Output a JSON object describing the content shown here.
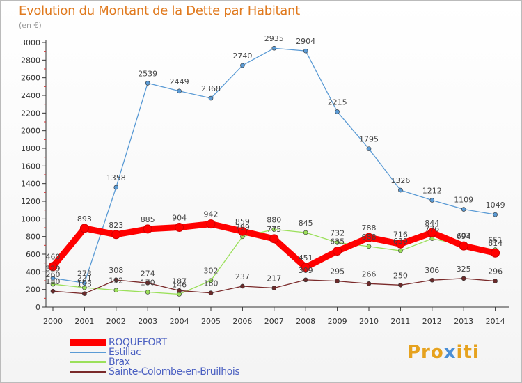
{
  "title": "Evolution du Montant de la Dette par Habitant",
  "unit": "(en €)",
  "logo": {
    "prefix": "Pro",
    "x": "x",
    "suffix": "iti"
  },
  "chart_data": {
    "type": "line",
    "title": "Evolution du Montant de la Dette par Habitant",
    "ylabel": "(en €)",
    "ylim": [
      0,
      3000
    ],
    "y_ticks": [
      0,
      200,
      400,
      600,
      800,
      1000,
      1200,
      1400,
      1600,
      1800,
      2000,
      2200,
      2400,
      2600,
      2800,
      3000
    ],
    "x": [
      "2000",
      "2001",
      "2002",
      "2003",
      "2004",
      "2005",
      "2006",
      "2007",
      "2008",
      "2009",
      "2010",
      "2011",
      "2012",
      "2013",
      "2014"
    ],
    "grid": false,
    "legend_position": "bottom-left",
    "series": [
      {
        "name": "ROQUEFORT",
        "color": "#ff0000",
        "values": [
          460,
          893,
          823,
          885,
          904,
          942,
          859,
          775,
          451,
          635,
          788,
          716,
          844,
          694,
          614
        ]
      },
      {
        "name": "Estillac",
        "color": "#5b9bd5",
        "values": [
          329,
          273,
          1358,
          2539,
          2449,
          2368,
          2740,
          2935,
          2904,
          2215,
          1795,
          1326,
          1212,
          1109,
          1049
        ]
      },
      {
        "name": "Brax",
        "color": "#9be05a",
        "values": [
          260,
          221,
          192,
          170,
          146,
          302,
          799,
          880,
          845,
          732,
          688,
          639,
          776,
          702,
          651
        ]
      },
      {
        "name": "Sainte-Colombe-en-Bruilhois",
        "color": "#7a2a2a",
        "values": [
          180,
          153,
          308,
          274,
          187,
          160,
          237,
          217,
          309,
          295,
          266,
          250,
          306,
          325,
          296
        ]
      }
    ]
  }
}
